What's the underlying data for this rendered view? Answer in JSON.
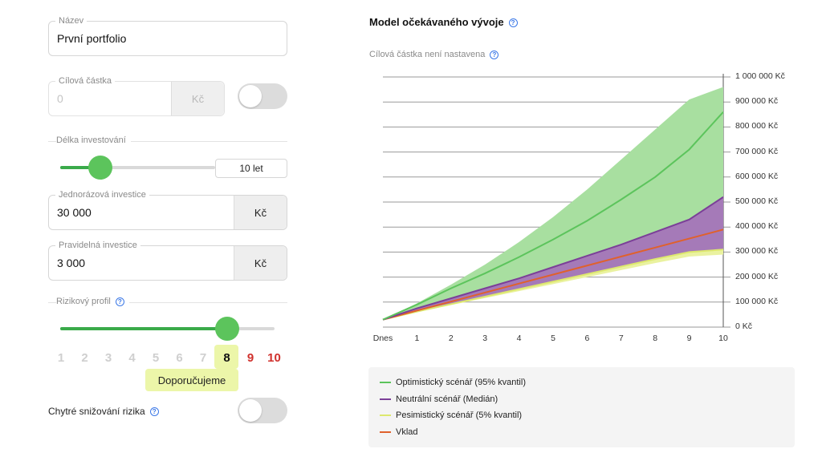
{
  "form": {
    "name": {
      "label": "Název",
      "value": "První portfolio"
    },
    "target": {
      "label": "Cílová částka",
      "value": "0",
      "unit": "Kč"
    },
    "duration": {
      "label": "Délka investování",
      "value": "10 let",
      "slider_fraction": 0.15
    },
    "lump_sum": {
      "label": "Jednorázová investice",
      "value": "30 000",
      "unit": "Kč"
    },
    "regular": {
      "label": "Pravidelná investice",
      "value": "3 000",
      "unit": "Kč"
    },
    "risk": {
      "label": "Rizikový profil",
      "levels": [
        "1",
        "2",
        "3",
        "4",
        "5",
        "6",
        "7",
        "8",
        "9",
        "10"
      ],
      "selected": "8",
      "recommended_label": "Doporučujeme",
      "slider_fraction": 0.78
    },
    "smart_risk": {
      "label": "Chytré snižování rizika"
    }
  },
  "chart": {
    "title": "Model očekávaného vývoje",
    "subtitle": "Cílová částka není nastavena",
    "colors": {
      "optimistic": "#5cc45c",
      "optimistic_fill": "#a8dfa0",
      "neutral": "#7b3f98",
      "neutral_fill": "#a57ab8",
      "pessimistic": "#dde86e",
      "pessimistic_fill": "#eaf2a0",
      "deposit": "#e0612c"
    }
  },
  "chart_data": {
    "type": "area",
    "title": "Model očekávaného vývoje",
    "x": [
      "Dnes",
      "1",
      "2",
      "3",
      "4",
      "5",
      "6",
      "7",
      "8",
      "9",
      "10"
    ],
    "y_tick_labels": [
      "1 000 000 Kč",
      "900 000 Kč",
      "800 000 Kč",
      "700 000 Kč",
      "600 000 Kč",
      "500 000 Kč",
      "400 000 Kč",
      "300 000 Kč",
      "200 000 Kč",
      "100 000 Kč",
      "0 Kč"
    ],
    "ylim": [
      0,
      1000000
    ],
    "grid": true,
    "series": [
      {
        "name": "Optimistický scénář (95% kvantil)",
        "upper": [
          30000,
          95000,
          170000,
          250000,
          340000,
          440000,
          550000,
          670000,
          790000,
          910000,
          960000
        ],
        "line": [
          30000,
          90000,
          155000,
          215000,
          280000,
          350000,
          425000,
          510000,
          600000,
          710000,
          860000
        ]
      },
      {
        "name": "Neutrální scénář (Medián)",
        "values": [
          30000,
          75000,
          115000,
          155000,
          195000,
          240000,
          285000,
          330000,
          380000,
          430000,
          520000
        ]
      },
      {
        "name": "Pesimistický scénář (5% kvantil)",
        "values": [
          30000,
          62000,
          92000,
          122000,
          152000,
          182000,
          212000,
          242000,
          272000,
          300000,
          310000
        ]
      },
      {
        "name": "Vklad",
        "values": [
          30000,
          66000,
          102000,
          138000,
          174000,
          210000,
          246000,
          282000,
          318000,
          354000,
          390000
        ]
      }
    ],
    "legend": [
      "Optimistický scénář (95% kvantil)",
      "Neutrální scénář (Medián)",
      "Pesimistický scénář (5% kvantil)",
      "Vklad"
    ]
  }
}
